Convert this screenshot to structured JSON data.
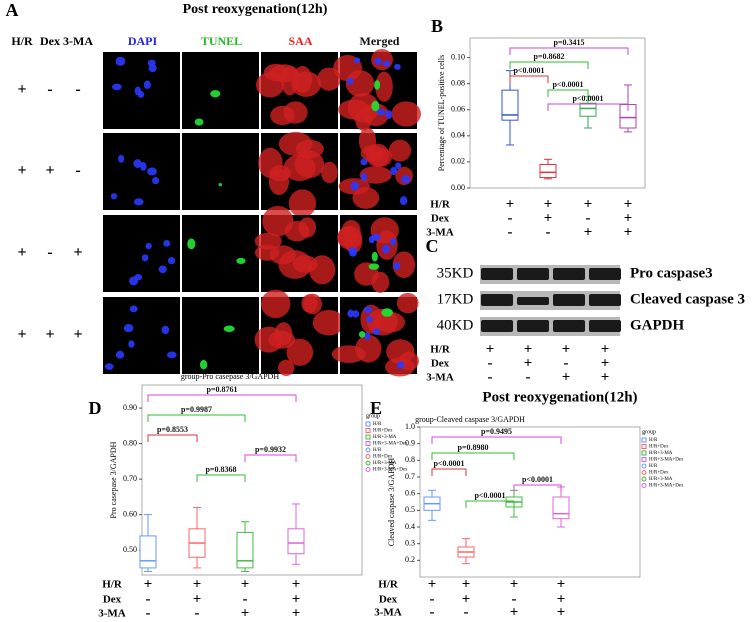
{
  "panel_a": {
    "label": "A",
    "title": "Post reoxygenation(12h)",
    "row_headers": [
      "H/R",
      "Dex",
      "3-MA"
    ],
    "columns": [
      {
        "name": "DAPI",
        "color": "#2222ee"
      },
      {
        "name": "TUNEL",
        "color": "#22bb22"
      },
      {
        "name": "SAA",
        "color": "#ee2222"
      },
      {
        "name": "Merged",
        "color": "#111111"
      }
    ],
    "rows": [
      [
        "+",
        "-",
        "-"
      ],
      [
        "+",
        "+",
        "-"
      ],
      [
        "+",
        "-",
        "+"
      ],
      [
        "+",
        "+",
        "+"
      ]
    ]
  },
  "panel_c": {
    "label": "C",
    "bands": [
      {
        "size": "35KD",
        "name": "Pro caspase3"
      },
      {
        "size": "17KD",
        "name": "Cleaved caspase 3"
      },
      {
        "size": "40KD",
        "name": "GAPDH"
      }
    ],
    "group_rows": [
      {
        "label": "H/R",
        "signs": [
          "+",
          "+",
          "+",
          "+"
        ]
      },
      {
        "label": "Dex",
        "signs": [
          "-",
          "+",
          "-",
          "+"
        ]
      },
      {
        "label": "3-MA",
        "signs": [
          "-",
          "-",
          "+",
          "+"
        ]
      }
    ]
  },
  "chart_data": [
    {
      "type": "box",
      "label": "B",
      "ylabel": "Percentage of TUNEL-positive cells",
      "ylim": [
        0,
        0.115
      ],
      "yticks": [
        {
          "value": 0,
          "label": "0.00"
        },
        {
          "value": 0.02,
          "label": "0.02"
        },
        {
          "value": 0.04,
          "label": "0.04"
        },
        {
          "value": 0.06,
          "label": "0.06"
        },
        {
          "value": 0.08,
          "label": "0.08"
        },
        {
          "value": 0.1,
          "label": "0.10"
        }
      ],
      "boxes": [
        {
          "color": "#3355cc",
          "min": 0.033,
          "q1": 0.052,
          "median": 0.056,
          "q3": 0.075,
          "max": 0.09
        },
        {
          "color": "#dd3344",
          "min": 0.007,
          "q1": 0.008,
          "median": 0.012,
          "q3": 0.018,
          "max": 0.022
        },
        {
          "color": "#33aa55",
          "min": 0.046,
          "q1": 0.055,
          "median": 0.061,
          "q3": 0.065,
          "max": 0.07
        },
        {
          "color": "#aa44aa",
          "min": 0.043,
          "q1": 0.046,
          "median": 0.054,
          "q3": 0.064,
          "max": 0.079
        }
      ],
      "annotations": [
        {
          "text": "p=0.3415",
          "groups": [
            0,
            3
          ],
          "color": "#cc44cc"
        },
        {
          "text": "p=0.8682",
          "groups": [
            0,
            2
          ],
          "color": "#33bb33"
        },
        {
          "text": "p<0.0001",
          "groups": [
            0,
            1
          ],
          "color": "#dd3333"
        },
        {
          "text": "p<0.0001",
          "groups": [
            1,
            2
          ],
          "color": "#33bb33"
        },
        {
          "text": "p<0.0001",
          "groups": [
            1,
            3
          ],
          "color": "#cc44cc"
        }
      ],
      "group_rows": [
        {
          "label": "H/R",
          "signs": [
            "+",
            "+",
            "+",
            "+"
          ]
        },
        {
          "label": "Dex",
          "signs": [
            "-",
            "+",
            "-",
            "+"
          ]
        },
        {
          "label": "3-MA",
          "signs": [
            "-",
            "-",
            "+",
            "+"
          ]
        }
      ]
    },
    {
      "type": "box",
      "label": "D",
      "title": "group-Pro casepase 3/GAPDH",
      "ylabel": "Pro casepase 3/GAPDH",
      "ylim": [
        0.43,
        0.965
      ],
      "yticks": [
        {
          "value": 0.5,
          "label": "0.50"
        },
        {
          "value": 0.6,
          "label": "0.60"
        },
        {
          "value": 0.7,
          "label": "0.70"
        },
        {
          "value": 0.8,
          "label": "0.80"
        },
        {
          "value": 0.9,
          "label": "0.90"
        }
      ],
      "boxes": [
        {
          "color": "#6699ff",
          "min": 0.44,
          "q1": 0.45,
          "median": 0.47,
          "q3": 0.54,
          "max": 0.6
        },
        {
          "color": "#ff6666",
          "min": 0.45,
          "q1": 0.48,
          "median": 0.52,
          "q3": 0.56,
          "max": 0.62
        },
        {
          "color": "#44bb44",
          "min": 0.44,
          "q1": 0.45,
          "median": 0.47,
          "q3": 0.55,
          "max": 0.58
        },
        {
          "color": "#dd66dd",
          "min": 0.46,
          "q1": 0.49,
          "median": 0.52,
          "q3": 0.56,
          "max": 0.63
        }
      ],
      "annotations": [
        {
          "text": "p=0.8761",
          "groups": [
            0,
            3
          ],
          "color": "#dd44dd"
        },
        {
          "text": "p=0.9987",
          "groups": [
            0,
            2
          ],
          "color": "#33bb33"
        },
        {
          "text": "p=0.8553",
          "groups": [
            0,
            1
          ],
          "color": "#dd3333"
        },
        {
          "text": "p=0.9932",
          "groups": [
            2,
            3
          ],
          "color": "#dd44dd"
        },
        {
          "text": "p=0.8368",
          "groups": [
            1,
            2
          ],
          "color": "#33bb33"
        }
      ],
      "legend": {
        "title": "group",
        "entries": [
          {
            "name": "H/R",
            "color": "#6699ff"
          },
          {
            "name": "H/R+Dex",
            "color": "#ff6666"
          },
          {
            "name": "H/R+3-MA",
            "color": "#44bb44"
          },
          {
            "name": "H/R+3-MA+Dex",
            "color": "#dd66dd"
          },
          {
            "name": "H/R",
            "color": "#6699ff"
          },
          {
            "name": "H/R+Dex",
            "color": "#ff6666"
          },
          {
            "name": "H/R+3-MA",
            "color": "#44bb44"
          },
          {
            "name": "H/R+3-MA+Dex",
            "color": "#dd66dd"
          }
        ]
      },
      "group_rows": [
        {
          "label": "H/R",
          "signs": [
            "+",
            "+",
            "+",
            "+"
          ]
        },
        {
          "label": "Dex",
          "signs": [
            "-",
            "+",
            "-",
            "+"
          ]
        },
        {
          "label": "3-MA",
          "signs": [
            "-",
            "-",
            "+",
            "+"
          ]
        }
      ]
    },
    {
      "type": "box",
      "label": "E",
      "heading": "Post reoxygenation(12h)",
      "title": "group-Cleaved caspase 3/GAPDH",
      "ylabel": "Cleaved caspase 3/GAPDH",
      "ylim": [
        0.1,
        1.0
      ],
      "yticks": [
        0.2,
        0.3,
        0.4,
        0.5,
        0.6,
        0.7,
        0.8,
        0.9,
        {
          "value": 1.0,
          "label": "1.0"
        }
      ],
      "boxes": [
        {
          "color": "#6699ff",
          "min": 0.44,
          "q1": 0.5,
          "median": 0.54,
          "q3": 0.58,
          "max": 0.62
        },
        {
          "color": "#ff6666",
          "min": 0.18,
          "q1": 0.22,
          "median": 0.25,
          "q3": 0.28,
          "max": 0.33
        },
        {
          "color": "#44bb44",
          "min": 0.46,
          "q1": 0.52,
          "median": 0.55,
          "q3": 0.58,
          "max": 0.62
        },
        {
          "color": "#dd66dd",
          "min": 0.4,
          "q1": 0.45,
          "median": 0.48,
          "q3": 0.58,
          "max": 0.64
        }
      ],
      "annotations": [
        {
          "text": "p=0.9495",
          "groups": [
            0,
            3
          ],
          "color": "#dd44dd"
        },
        {
          "text": "p=0.8980",
          "groups": [
            0,
            2
          ],
          "color": "#33bb33"
        },
        {
          "text": "p<0.0001",
          "groups": [
            0,
            1
          ],
          "color": "#dd3333"
        },
        {
          "text": "p<0.0001",
          "groups": [
            2,
            3
          ],
          "color": "#dd44dd"
        },
        {
          "text": "p<0.0001",
          "groups": [
            1,
            2
          ],
          "color": "#33bb33"
        }
      ],
      "legend": {
        "title": "group",
        "entries": [
          {
            "name": "H/R",
            "color": "#6699ff"
          },
          {
            "name": "H/R+Dex",
            "color": "#ff6666"
          },
          {
            "name": "H/R+3-MA",
            "color": "#44bb44"
          },
          {
            "name": "H/R+3-MA+Dex",
            "color": "#dd66dd"
          },
          {
            "name": "H/R",
            "color": "#6699ff"
          },
          {
            "name": "H/R+Dex",
            "color": "#ff6666"
          },
          {
            "name": "H/R+3-MA",
            "color": "#44bb44"
          },
          {
            "name": "H/R+3-MA+Dex",
            "color": "#dd66dd"
          }
        ]
      },
      "group_rows": [
        {
          "label": "H/R",
          "signs": [
            "+",
            "+",
            "+",
            "+"
          ]
        },
        {
          "label": "Dex",
          "signs": [
            "-",
            "+",
            "-",
            "+"
          ]
        },
        {
          "label": "3-MA",
          "signs": [
            "-",
            "-",
            "+",
            "+"
          ]
        }
      ]
    }
  ]
}
